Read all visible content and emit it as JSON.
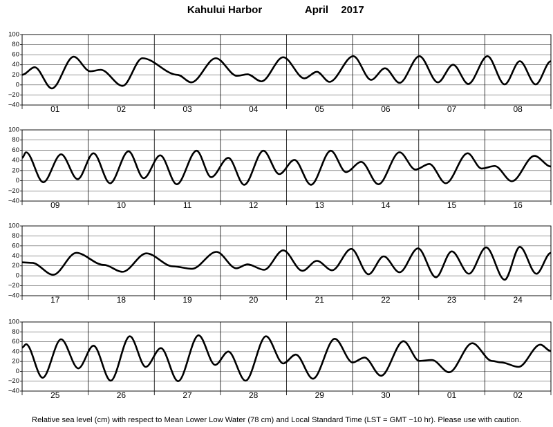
{
  "header": {
    "station": "Kahului Harbor",
    "month": "April",
    "year": "2017"
  },
  "footer": "Relative sea level (cm) with respect to Mean Lower Low Water (78 cm) and Local Standard Time (LST = GMT −10 hr). Please use with caution.",
  "chart_data": [
    {
      "type": "line",
      "color": "#000000",
      "grid": true,
      "categories": [
        "01",
        "02",
        "03",
        "04",
        "05",
        "06",
        "07",
        "08"
      ],
      "xlim": [
        0,
        8
      ],
      "xticks": [
        0,
        1,
        2,
        3,
        4,
        5,
        6,
        7,
        8
      ],
      "ylim": [
        -40,
        100
      ],
      "yticks": [
        {
          "value": -40,
          "label": "−40"
        },
        {
          "value": -20,
          "label": "−20"
        },
        0,
        20,
        40,
        60,
        80,
        100
      ],
      "x": [
        0,
        0.19,
        0.45,
        0.78,
        1.03,
        1.19,
        1.52,
        1.82,
        2.35,
        2.56,
        2.93,
        3.25,
        3.41,
        3.62,
        3.95,
        4.27,
        4.46,
        4.65,
        5.01,
        5.28,
        5.49,
        5.71,
        6.01,
        6.29,
        6.52,
        6.75,
        7.04,
        7.3,
        7.53,
        7.77,
        8
      ],
      "values": [
        20,
        35,
        -7,
        56,
        27,
        30,
        -2,
        53,
        20,
        5,
        53,
        18,
        21,
        7,
        55,
        13,
        26,
        6,
        57,
        10,
        33,
        4,
        57,
        5,
        40,
        2,
        57,
        1,
        47,
        1,
        47
      ]
    },
    {
      "type": "line",
      "color": "#000000",
      "grid": true,
      "categories": [
        "09",
        "10",
        "11",
        "12",
        "13",
        "14",
        "15",
        "16"
      ],
      "xlim": [
        0,
        8
      ],
      "xticks": [
        0,
        1,
        2,
        3,
        4,
        5,
        6,
        7,
        8
      ],
      "ylim": [
        -40,
        100
      ],
      "yticks": [
        {
          "value": -40,
          "label": "−40"
        },
        {
          "value": -20,
          "label": "−20"
        },
        0,
        20,
        40,
        60,
        80,
        100
      ],
      "x": [
        0,
        0.06,
        0.32,
        0.59,
        0.84,
        1.08,
        1.33,
        1.61,
        1.84,
        2.09,
        2.34,
        2.64,
        2.86,
        3.12,
        3.36,
        3.65,
        3.89,
        4.12,
        4.37,
        4.67,
        4.9,
        5.13,
        5.39,
        5.71,
        5.95,
        6.16,
        6.41,
        6.74,
        6.95,
        7.15,
        7.41,
        7.75,
        8
      ],
      "values": [
        45,
        56,
        -3,
        52,
        3,
        54,
        -5,
        58,
        5,
        50,
        -7,
        59,
        7,
        45,
        -8,
        59,
        13,
        41,
        -8,
        59,
        17,
        37,
        -7,
        56,
        22,
        33,
        -5,
        54,
        24,
        29,
        -1,
        49,
        28
      ]
    },
    {
      "type": "line",
      "color": "#000000",
      "grid": true,
      "categories": [
        "17",
        "18",
        "19",
        "20",
        "21",
        "22",
        "23",
        "24"
      ],
      "xlim": [
        0,
        8
      ],
      "xticks": [
        0,
        1,
        2,
        3,
        4,
        5,
        6,
        7,
        8
      ],
      "ylim": [
        -40,
        100
      ],
      "yticks": [
        {
          "value": -40,
          "label": "−40"
        },
        {
          "value": -20,
          "label": "−20"
        },
        0,
        20,
        40,
        60,
        80,
        100
      ],
      "x": [
        0,
        0.15,
        0.47,
        0.82,
        1.23,
        1.52,
        1.88,
        2.28,
        2.57,
        2.94,
        3.24,
        3.41,
        3.66,
        3.95,
        4.24,
        4.46,
        4.69,
        4.98,
        5.24,
        5.47,
        5.71,
        5.99,
        6.26,
        6.5,
        6.76,
        7.02,
        7.3,
        7.53,
        7.78,
        8
      ],
      "values": [
        27,
        26,
        2,
        46,
        22,
        8,
        45,
        19,
        14,
        48,
        15,
        23,
        12,
        51,
        10,
        30,
        11,
        54,
        3,
        39,
        7,
        55,
        -3,
        49,
        4,
        57,
        -8,
        58,
        4,
        46
      ]
    },
    {
      "type": "line",
      "color": "#000000",
      "grid": true,
      "categories": [
        "25",
        "26",
        "27",
        "28",
        "29",
        "30",
        "01",
        "02"
      ],
      "xlim": [
        0,
        8
      ],
      "xticks": [
        0,
        1,
        2,
        3,
        4,
        5,
        6,
        7,
        8
      ],
      "ylim": [
        -40,
        100
      ],
      "yticks": [
        {
          "value": -40,
          "label": "−40"
        },
        {
          "value": -20,
          "label": "−20"
        },
        0,
        20,
        40,
        60,
        80,
        100
      ],
      "x": [
        0,
        0.06,
        0.31,
        0.59,
        0.85,
        1.08,
        1.34,
        1.63,
        1.87,
        2.1,
        2.36,
        2.67,
        2.92,
        3.12,
        3.38,
        3.69,
        3.95,
        4.14,
        4.4,
        4.73,
        5.0,
        5.18,
        5.43,
        5.77,
        6.01,
        6.2,
        6.46,
        6.81,
        7.11,
        7.25,
        7.51,
        7.84,
        8
      ],
      "values": [
        48,
        55,
        -13,
        65,
        6,
        52,
        -19,
        71,
        9,
        47,
        -20,
        73,
        13,
        40,
        -19,
        71,
        16,
        34,
        -15,
        66,
        18,
        28,
        -9,
        61,
        21,
        23,
        -2,
        57,
        21,
        18,
        9,
        54,
        41
      ]
    }
  ]
}
